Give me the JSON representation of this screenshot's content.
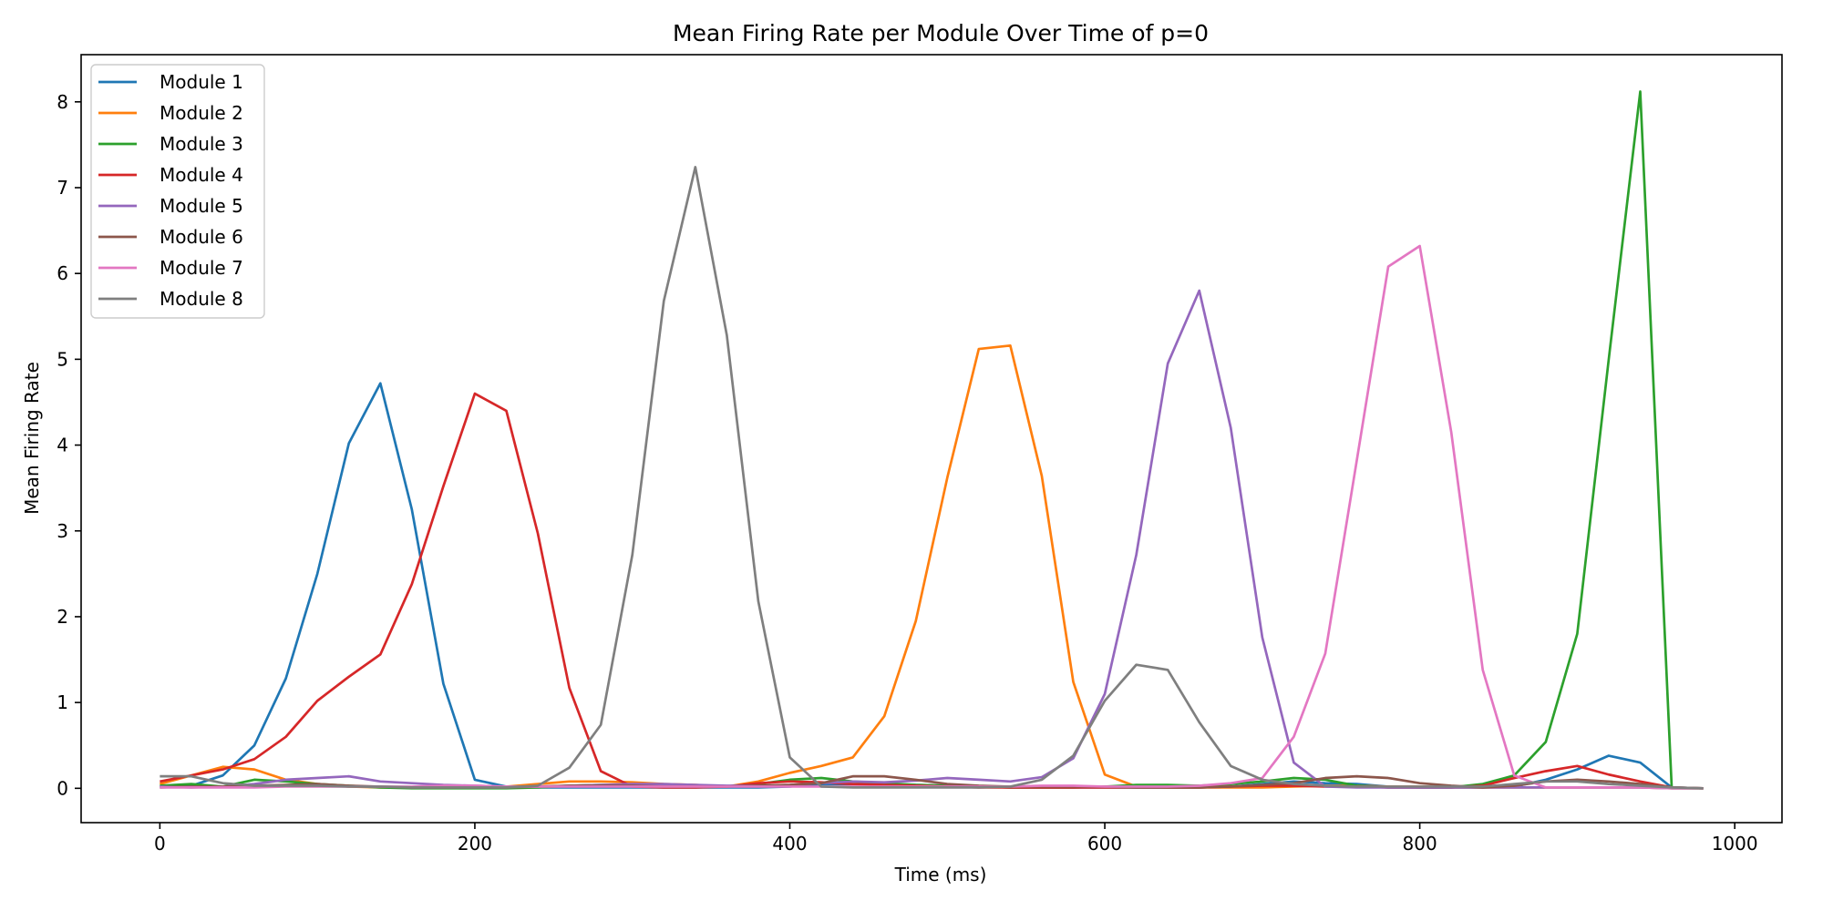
{
  "chart_data": {
    "type": "line",
    "title": "Mean Firing Rate per Module Over Time of p=0",
    "xlabel": "Time (ms)",
    "ylabel": "Mean Firing Rate",
    "xlim": [
      -50,
      1030
    ],
    "ylim": [
      -0.4,
      8.55
    ],
    "xticks": [
      0,
      200,
      400,
      600,
      800,
      1000
    ],
    "yticks": [
      0,
      1,
      2,
      3,
      4,
      5,
      6,
      7,
      8
    ],
    "grid": false,
    "legend_position": "upper-left",
    "x": [
      0,
      20,
      40,
      60,
      80,
      100,
      120,
      140,
      160,
      180,
      200,
      220,
      240,
      260,
      280,
      300,
      320,
      340,
      360,
      380,
      400,
      420,
      440,
      460,
      480,
      500,
      520,
      540,
      560,
      580,
      600,
      620,
      640,
      660,
      680,
      700,
      720,
      740,
      760,
      780,
      800,
      820,
      840,
      860,
      880,
      900,
      920,
      940,
      960,
      980
    ],
    "series": [
      {
        "name": "Module 1",
        "color": "#1f77b4",
        "values": [
          0.02,
          0.03,
          0.15,
          0.5,
          1.28,
          2.5,
          4.02,
          4.72,
          3.25,
          1.22,
          0.1,
          0.02,
          0.01,
          0.01,
          0.01,
          0.01,
          0.01,
          0.01,
          0.01,
          0.01,
          0.02,
          0.05,
          0.05,
          0.05,
          0.04,
          0.03,
          0.02,
          0.01,
          0.01,
          0.01,
          0.01,
          0.01,
          0.01,
          0.01,
          0.02,
          0.05,
          0.08,
          0.06,
          0.05,
          0.02,
          0.01,
          0.01,
          0.01,
          0.02,
          0.1,
          0.22,
          0.38,
          0.3,
          0.01,
          0.0
        ]
      },
      {
        "name": "Module 2",
        "color": "#ff7f0e",
        "values": [
          0.05,
          0.15,
          0.25,
          0.22,
          0.1,
          0.05,
          0.02,
          0.01,
          0.01,
          0.01,
          0.01,
          0.02,
          0.05,
          0.08,
          0.08,
          0.07,
          0.05,
          0.04,
          0.02,
          0.08,
          0.18,
          0.26,
          0.36,
          0.84,
          1.95,
          3.62,
          5.12,
          5.16,
          3.64,
          1.24,
          0.16,
          0.02,
          0.01,
          0.01,
          0.01,
          0.01,
          0.02,
          0.03,
          0.03,
          0.02,
          0.02,
          0.01,
          0.01,
          0.01,
          0.01,
          0.01,
          0.01,
          0.01,
          0.0,
          0.0
        ]
      },
      {
        "name": "Module 3",
        "color": "#2ca02c",
        "values": [
          0.03,
          0.05,
          0.02,
          0.1,
          0.08,
          0.05,
          0.03,
          0.01,
          0.0,
          0.0,
          0.0,
          0.0,
          0.01,
          0.03,
          0.04,
          0.04,
          0.03,
          0.03,
          0.02,
          0.05,
          0.1,
          0.12,
          0.08,
          0.06,
          0.04,
          0.03,
          0.02,
          0.01,
          0.01,
          0.01,
          0.02,
          0.04,
          0.04,
          0.03,
          0.05,
          0.08,
          0.12,
          0.1,
          0.03,
          0.01,
          0.01,
          0.01,
          0.05,
          0.15,
          0.54,
          1.8,
          5.0,
          8.12,
          0.0,
          0.0
        ]
      },
      {
        "name": "Module 4",
        "color": "#d62728",
        "values": [
          0.08,
          0.15,
          0.22,
          0.34,
          0.6,
          1.02,
          1.3,
          1.56,
          2.38,
          3.52,
          4.6,
          4.4,
          2.97,
          1.17,
          0.2,
          0.02,
          0.01,
          0.01,
          0.02,
          0.06,
          0.08,
          0.07,
          0.05,
          0.04,
          0.03,
          0.02,
          0.01,
          0.01,
          0.01,
          0.01,
          0.01,
          0.01,
          0.01,
          0.01,
          0.02,
          0.03,
          0.03,
          0.02,
          0.02,
          0.01,
          0.01,
          0.01,
          0.03,
          0.12,
          0.2,
          0.26,
          0.16,
          0.08,
          0.01,
          0.0
        ]
      },
      {
        "name": "Module 5",
        "color": "#9467bd",
        "values": [
          0.02,
          0.01,
          0.02,
          0.05,
          0.1,
          0.12,
          0.14,
          0.08,
          0.06,
          0.04,
          0.03,
          0.02,
          0.02,
          0.03,
          0.04,
          0.05,
          0.05,
          0.04,
          0.03,
          0.03,
          0.04,
          0.06,
          0.08,
          0.07,
          0.09,
          0.12,
          0.1,
          0.08,
          0.13,
          0.35,
          1.1,
          2.72,
          4.95,
          5.8,
          4.2,
          1.76,
          0.3,
          0.02,
          0.01,
          0.01,
          0.01,
          0.01,
          0.01,
          0.01,
          0.01,
          0.01,
          0.01,
          0.01,
          0.0,
          0.0
        ]
      },
      {
        "name": "Module 6",
        "color": "#8c564b",
        "values": [
          0.01,
          0.02,
          0.02,
          0.03,
          0.04,
          0.05,
          0.03,
          0.02,
          0.01,
          0.01,
          0.01,
          0.01,
          0.02,
          0.03,
          0.03,
          0.03,
          0.02,
          0.02,
          0.02,
          0.03,
          0.04,
          0.06,
          0.14,
          0.14,
          0.1,
          0.05,
          0.03,
          0.02,
          0.02,
          0.02,
          0.02,
          0.01,
          0.01,
          0.01,
          0.02,
          0.04,
          0.06,
          0.12,
          0.14,
          0.12,
          0.06,
          0.03,
          0.01,
          0.03,
          0.08,
          0.1,
          0.08,
          0.05,
          0.01,
          0.0
        ]
      },
      {
        "name": "Module 7",
        "color": "#e377c2",
        "values": [
          0.01,
          0.01,
          0.01,
          0.01,
          0.02,
          0.02,
          0.02,
          0.02,
          0.02,
          0.03,
          0.03,
          0.02,
          0.02,
          0.02,
          0.02,
          0.02,
          0.02,
          0.02,
          0.02,
          0.02,
          0.02,
          0.02,
          0.02,
          0.02,
          0.02,
          0.02,
          0.02,
          0.02,
          0.03,
          0.03,
          0.02,
          0.02,
          0.02,
          0.03,
          0.06,
          0.12,
          0.6,
          1.57,
          3.82,
          6.08,
          6.32,
          4.15,
          1.38,
          0.15,
          0.01,
          0.01,
          0.01,
          0.01,
          0.0,
          0.0
        ]
      },
      {
        "name": "Module 8",
        "color": "#7f7f7f",
        "values": [
          0.14,
          0.14,
          0.06,
          0.03,
          0.03,
          0.03,
          0.02,
          0.02,
          0.01,
          0.01,
          0.01,
          0.01,
          0.03,
          0.24,
          0.74,
          2.72,
          5.68,
          7.24,
          5.28,
          2.18,
          0.36,
          0.02,
          0.01,
          0.01,
          0.01,
          0.01,
          0.01,
          0.02,
          0.1,
          0.38,
          1.02,
          1.44,
          1.38,
          0.77,
          0.26,
          0.1,
          0.05,
          0.03,
          0.02,
          0.02,
          0.02,
          0.02,
          0.02,
          0.05,
          0.08,
          0.08,
          0.05,
          0.03,
          0.01,
          0.0
        ]
      }
    ]
  }
}
